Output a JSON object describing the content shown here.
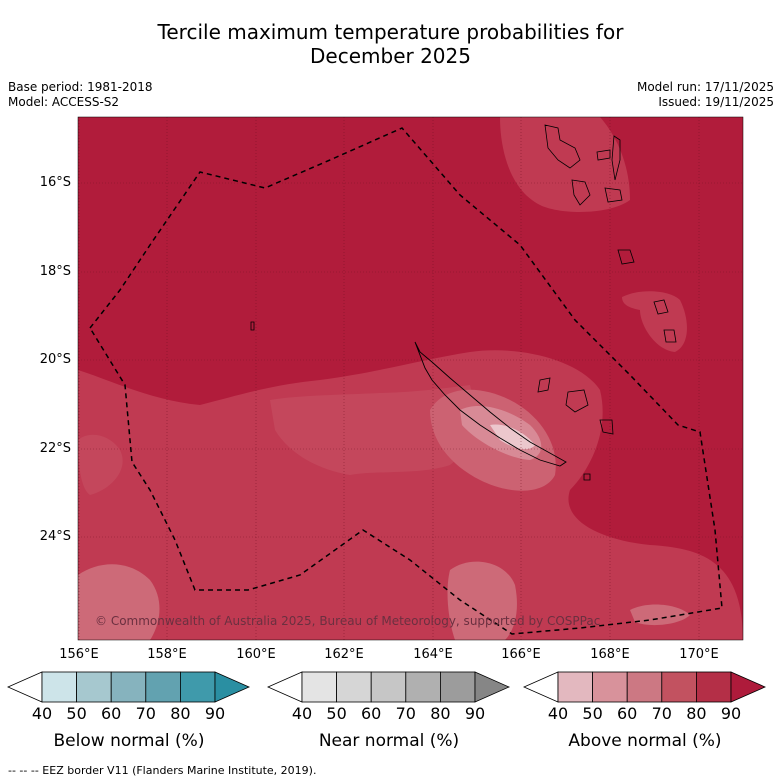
{
  "title_line1": "Tercile maximum temperature probabilities for",
  "title_line2": "December 2025",
  "meta": {
    "base_period": "Base period: 1981-2018",
    "model": "Model: ACCESS-S2",
    "model_run": "Model run: 17/11/2025",
    "issued": "Issued: 19/11/2025"
  },
  "map": {
    "copyright": "© Commonwealth of Australia 2025, Bureau of Meteorology, supported by COSPPac",
    "lat_labels": [
      "16°S",
      "18°S",
      "20°S",
      "22°S",
      "24°S"
    ],
    "lon_labels": [
      "156°E",
      "158°E",
      "160°E",
      "162°E",
      "164°E",
      "166°E",
      "168°E",
      "170°E"
    ]
  },
  "legends": [
    {
      "title": "Below normal (%)",
      "ticks": [
        "40",
        "50",
        "60",
        "70",
        "80",
        "90"
      ],
      "colors": [
        "#ffffff",
        "#cde4e9",
        "#a6c8cf",
        "#86b3be",
        "#62a2b0",
        "#3f9aab",
        "#2a8fa2"
      ]
    },
    {
      "title": "Near normal (%)",
      "ticks": [
        "40",
        "50",
        "60",
        "70",
        "80",
        "90"
      ],
      "colors": [
        "#ffffff",
        "#e4e4e4",
        "#d6d6d6",
        "#c6c6c6",
        "#b0b0b0",
        "#9c9c9c",
        "#868686"
      ]
    },
    {
      "title": "Above normal (%)",
      "ticks": [
        "40",
        "50",
        "60",
        "70",
        "80",
        "90"
      ],
      "colors": [
        "#ffffff",
        "#e3b8bf",
        "#d8929b",
        "#cc7883",
        "#c25260",
        "#b42f47",
        "#ae1b3b"
      ]
    }
  ],
  "footnote": "--  --  -- EEZ border V11 (Flanders Marine Institute, 2019).",
  "palette": {
    "dark_red": "#b11c3b",
    "mid_red": "#c23c53",
    "light_red": "#cd6a78",
    "pale": "#e9c0c7"
  }
}
